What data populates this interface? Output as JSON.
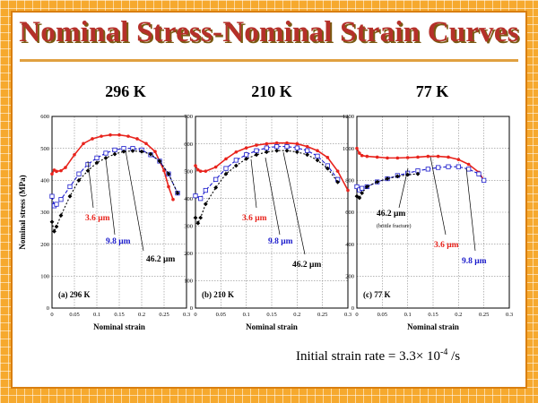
{
  "title": "Nominal Stress-Nominal Strain Curves",
  "temperatures": [
    "296 K",
    "210 K",
    "77 K"
  ],
  "footnote": {
    "prefix": "Initial strain rate = 3.3× 10",
    "exponent": "-4",
    "suffix": " /s"
  },
  "colors": {
    "red": "#e8231c",
    "blue": "#1a1acc",
    "black": "#000000",
    "title": "#b5302a"
  },
  "chart_data": [
    {
      "type": "line",
      "panel_label": "(a) 296 K",
      "xlabel": "Nominal strain",
      "ylabel": "Nominal stress (MPa)",
      "xlim": [
        0,
        0.3
      ],
      "ylim": [
        0,
        600
      ],
      "xticks": [
        "0",
        "0.05",
        "0.1",
        "0.15",
        "0.2",
        "0.25",
        "0.3"
      ],
      "yticks": [
        "0",
        "100",
        "200",
        "300",
        "400",
        "500",
        "600"
      ],
      "series": [
        {
          "name": "3.6 μm",
          "color": "red",
          "marker": "circle",
          "x": [
            0,
            0.005,
            0.01,
            0.02,
            0.03,
            0.05,
            0.07,
            0.09,
            0.11,
            0.13,
            0.15,
            0.17,
            0.19,
            0.21,
            0.23,
            0.25,
            0.26,
            0.27
          ],
          "y": [
            420,
            432,
            428,
            430,
            440,
            480,
            515,
            530,
            538,
            542,
            542,
            538,
            530,
            515,
            490,
            430,
            380,
            340
          ]
        },
        {
          "name": "9.8 μm",
          "color": "blue",
          "marker": "square",
          "x": [
            0,
            0.005,
            0.01,
            0.02,
            0.04,
            0.06,
            0.08,
            0.1,
            0.12,
            0.14,
            0.16,
            0.18,
            0.2,
            0.22,
            0.24,
            0.26,
            0.28
          ],
          "y": [
            350,
            320,
            325,
            340,
            380,
            420,
            450,
            470,
            485,
            495,
            500,
            500,
            495,
            480,
            460,
            420,
            360
          ]
        },
        {
          "name": "46.2 μm",
          "color": "black",
          "marker": "diamond",
          "x": [
            0,
            0.005,
            0.01,
            0.02,
            0.04,
            0.06,
            0.08,
            0.1,
            0.12,
            0.14,
            0.16,
            0.18,
            0.2,
            0.22,
            0.24,
            0.26,
            0.28
          ],
          "y": [
            270,
            240,
            255,
            290,
            350,
            400,
            430,
            455,
            470,
            482,
            490,
            492,
            490,
            482,
            460,
            420,
            360
          ]
        }
      ],
      "annotations": [
        "3.6 μm",
        "9.8 μm",
        "46.2 μm"
      ]
    },
    {
      "type": "line",
      "panel_label": "(b) 210 K",
      "xlabel": "Nominal strain",
      "xlim": [
        0,
        0.3
      ],
      "ylim": [
        0,
        700
      ],
      "xticks": [
        "0",
        "0.05",
        "0.1",
        "0.15",
        "0.2",
        "0.25",
        "0.3"
      ],
      "yticks": [
        "0",
        "100",
        "200",
        "300",
        "400",
        "500",
        "600",
        "700"
      ],
      "series": [
        {
          "name": "3.6 μm",
          "color": "red",
          "marker": "circle",
          "x": [
            0,
            0.005,
            0.01,
            0.02,
            0.04,
            0.06,
            0.08,
            0.1,
            0.12,
            0.14,
            0.16,
            0.18,
            0.2,
            0.22,
            0.24,
            0.26,
            0.28,
            0.3
          ],
          "y": [
            520,
            505,
            500,
            500,
            515,
            545,
            570,
            585,
            595,
            600,
            603,
            603,
            600,
            590,
            575,
            550,
            500,
            430
          ]
        },
        {
          "name": "9.8 μm",
          "color": "blue",
          "marker": "square",
          "x": [
            0,
            0.01,
            0.02,
            0.04,
            0.06,
            0.08,
            0.1,
            0.12,
            0.14,
            0.16,
            0.18,
            0.2,
            0.22,
            0.24,
            0.26,
            0.28
          ],
          "y": [
            410,
            400,
            430,
            470,
            510,
            540,
            560,
            575,
            585,
            590,
            590,
            585,
            575,
            555,
            520,
            470
          ]
        },
        {
          "name": "46.2 μm",
          "color": "black",
          "marker": "diamond",
          "x": [
            0,
            0.005,
            0.01,
            0.02,
            0.04,
            0.06,
            0.08,
            0.1,
            0.12,
            0.14,
            0.16,
            0.18,
            0.2,
            0.22,
            0.24,
            0.26,
            0.28
          ],
          "y": [
            330,
            310,
            330,
            380,
            440,
            490,
            520,
            545,
            560,
            570,
            575,
            575,
            570,
            560,
            540,
            510,
            460
          ]
        }
      ],
      "annotations": [
        "3.6 μm",
        "9.8 μm",
        "46.2 μm"
      ]
    },
    {
      "type": "line",
      "panel_label": "(c) 77 K",
      "xlabel": "Nominal strain",
      "xlim": [
        0,
        0.3
      ],
      "ylim": [
        0,
        1200
      ],
      "xticks": [
        "0",
        "0.05",
        "0.1",
        "0.15",
        "0.2",
        "0.25",
        "0.3"
      ],
      "yticks": [
        "0",
        "200",
        "400",
        "600",
        "800",
        "1000",
        "1200"
      ],
      "series": [
        {
          "name": "3.6 μm",
          "color": "red",
          "marker": "circle",
          "x": [
            0,
            0.005,
            0.01,
            0.02,
            0.04,
            0.06,
            0.08,
            0.1,
            0.12,
            0.14,
            0.16,
            0.18,
            0.2,
            0.22,
            0.24,
            0.25
          ],
          "y": [
            1000,
            970,
            955,
            950,
            945,
            940,
            940,
            942,
            945,
            950,
            950,
            945,
            930,
            900,
            850,
            800
          ]
        },
        {
          "name": "9.8 μm",
          "color": "blue",
          "marker": "square",
          "x": [
            0,
            0.005,
            0.01,
            0.02,
            0.04,
            0.06,
            0.08,
            0.1,
            0.12,
            0.14,
            0.16,
            0.18,
            0.2,
            0.22,
            0.24,
            0.25
          ],
          "y": [
            760,
            740,
            750,
            760,
            790,
            810,
            830,
            845,
            860,
            870,
            880,
            885,
            885,
            870,
            840,
            800
          ]
        },
        {
          "name": "46.2 μm",
          "color": "black",
          "marker": "diamond",
          "x": [
            0,
            0.005,
            0.01,
            0.02,
            0.04,
            0.06,
            0.08,
            0.1,
            0.12
          ],
          "y": [
            700,
            690,
            720,
            760,
            790,
            810,
            825,
            835,
            840
          ]
        }
      ],
      "annotations": [
        "46.2 μm",
        "(brittle fracture)",
        "3.6 μm",
        "9.8 μm"
      ]
    }
  ]
}
